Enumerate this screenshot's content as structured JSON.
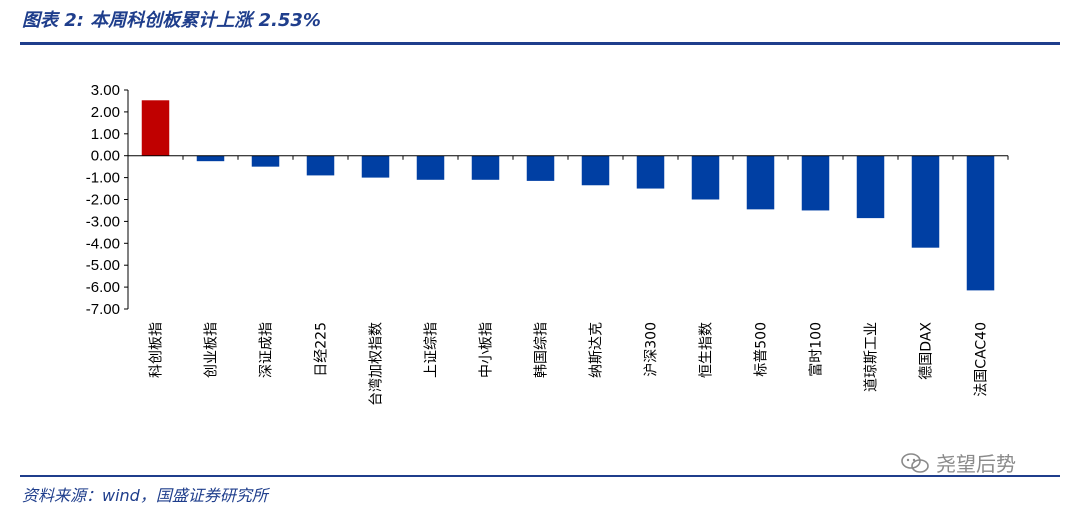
{
  "figure": {
    "title": "图表 2:  本周科创板累计上涨 2.53%",
    "source": "资料来源：wind，国盛证券研究所",
    "watermark": "尧望后势"
  },
  "colors": {
    "positive": "#c00000",
    "negative": "#003fa3",
    "frame": "#1f3e8c"
  },
  "chart_data": {
    "type": "bar",
    "categories": [
      "科创板指",
      "创业板指",
      "深证成指",
      "日经225",
      "台湾加权指数",
      "上证综指",
      "中小板指",
      "韩国综指",
      "纳斯达克",
      "沪深300",
      "恒生指数",
      "标普500",
      "富时100",
      "道琼斯工业",
      "德国DAX",
      "法国CAC40"
    ],
    "values": [
      2.53,
      -0.25,
      -0.5,
      -0.9,
      -1.0,
      -1.1,
      -1.1,
      -1.15,
      -1.35,
      -1.5,
      -2.0,
      -2.45,
      -2.5,
      -2.85,
      -4.2,
      -6.15
    ],
    "yticks": [
      "3.00",
      "2.00",
      "1.00",
      "0.00",
      "-1.00",
      "-2.00",
      "-3.00",
      "-4.00",
      "-5.00",
      "-6.00",
      "-7.00"
    ],
    "ylim": [
      -7,
      3
    ],
    "grid": false,
    "legend": "none",
    "xlabel": "",
    "ylabel": ""
  }
}
